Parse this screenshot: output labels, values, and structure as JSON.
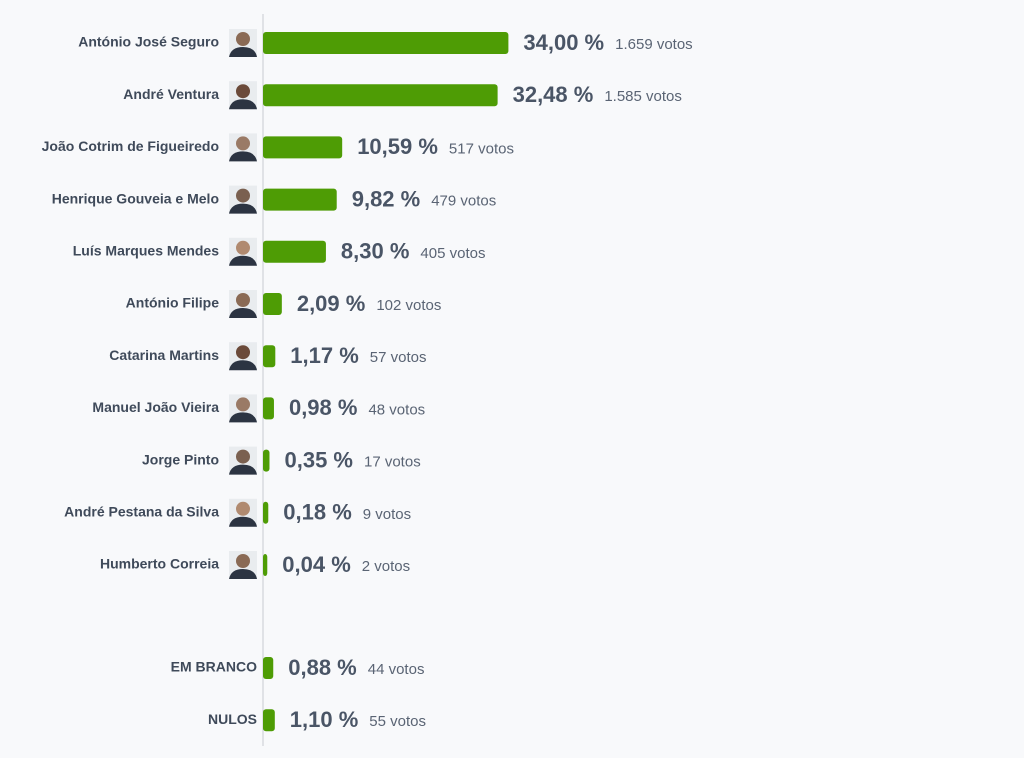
{
  "chart_data": {
    "type": "bar",
    "orientation": "horizontal",
    "color": "#4e9c05",
    "groups": [
      {
        "categories": [
          "António José Seguro",
          "André Ventura",
          "João Cotrim de Figueiredo",
          "Henrique Gouveia e Melo",
          "Luís Marques Mendes",
          "António Filipe",
          "Catarina Martins",
          "Manuel João Vieira",
          "Jorge Pinto",
          "André Pestana da Silva",
          "Humberto Correia"
        ],
        "values": [
          34.0,
          32.48,
          10.59,
          9.82,
          8.3,
          2.09,
          1.17,
          0.98,
          0.35,
          0.18,
          0.04
        ],
        "value_labels": [
          "34,00 %",
          "32,48 %",
          "10,59 %",
          "9,82 %",
          "8,30 %",
          "2,09 %",
          "1,17 %",
          "0,98 %",
          "0,35 %",
          "0,18 %",
          "0,04 %"
        ],
        "vote_labels": [
          "1.659 votos",
          "1.585 votos",
          "517 votos",
          "479 votos",
          "405 votos",
          "102 votos",
          "57 votos",
          "48 votos",
          "17 votos",
          "9 votos",
          "2 votos"
        ]
      },
      {
        "categories": [
          "EM BRANCO",
          "NULOS"
        ],
        "values": [
          0.88,
          1.1
        ],
        "value_labels": [
          "0,88 %",
          "1,10 %"
        ],
        "vote_labels": [
          "44 votos",
          "55 votos"
        ]
      }
    ]
  }
}
